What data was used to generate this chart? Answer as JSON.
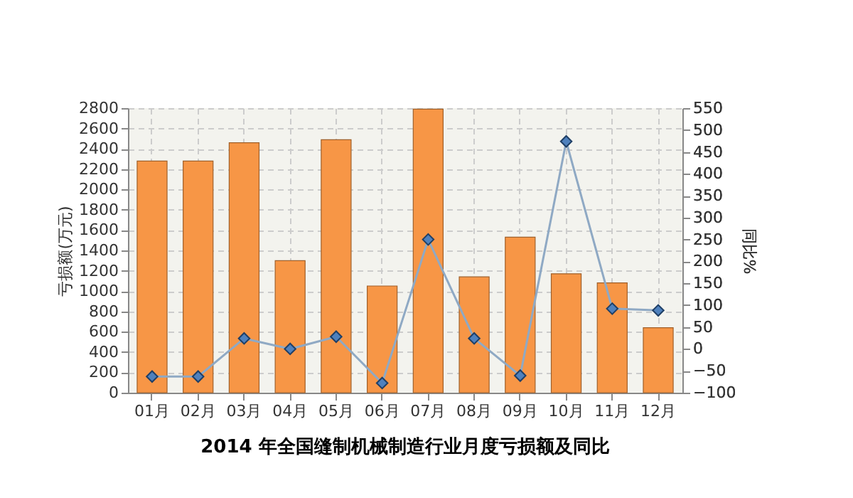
{
  "chart_data": {
    "type": "bar",
    "title": "2014 年全国缝制机械制造行业月度亏损额及同比",
    "ylabel": "亏损额(万元)",
    "y2label": "同比%",
    "categories": [
      "01月",
      "02月",
      "03月",
      "04月",
      "05月",
      "06月",
      "07月",
      "08月",
      "09月",
      "10月",
      "11月",
      "12月"
    ],
    "series": [
      {
        "color": "#f79646",
        "values": [
          2280,
          2280,
          2460,
          1300,
          2490,
          1050,
          2790,
          1140,
          1530,
          1170,
          1080,
          640
        ]
      },
      {
        "type": "line",
        "axis": "y2",
        "color": "#4f81bd",
        "marker": "diamond",
        "values": [
          -63,
          -63,
          24,
          0,
          28,
          -78,
          250,
          24,
          -61,
          474,
          92,
          88
        ]
      }
    ],
    "ylim": [
      0,
      2800
    ],
    "yticks": [
      0,
      200,
      400,
      600,
      800,
      1000,
      1200,
      1400,
      1600,
      1800,
      2000,
      2200,
      2400,
      2600,
      2800
    ],
    "y2lim": [
      -100,
      550
    ],
    "y2ticks": [
      -100,
      -50,
      0,
      50,
      100,
      150,
      200,
      250,
      300,
      350,
      400,
      450,
      500,
      550
    ],
    "grid": true
  }
}
